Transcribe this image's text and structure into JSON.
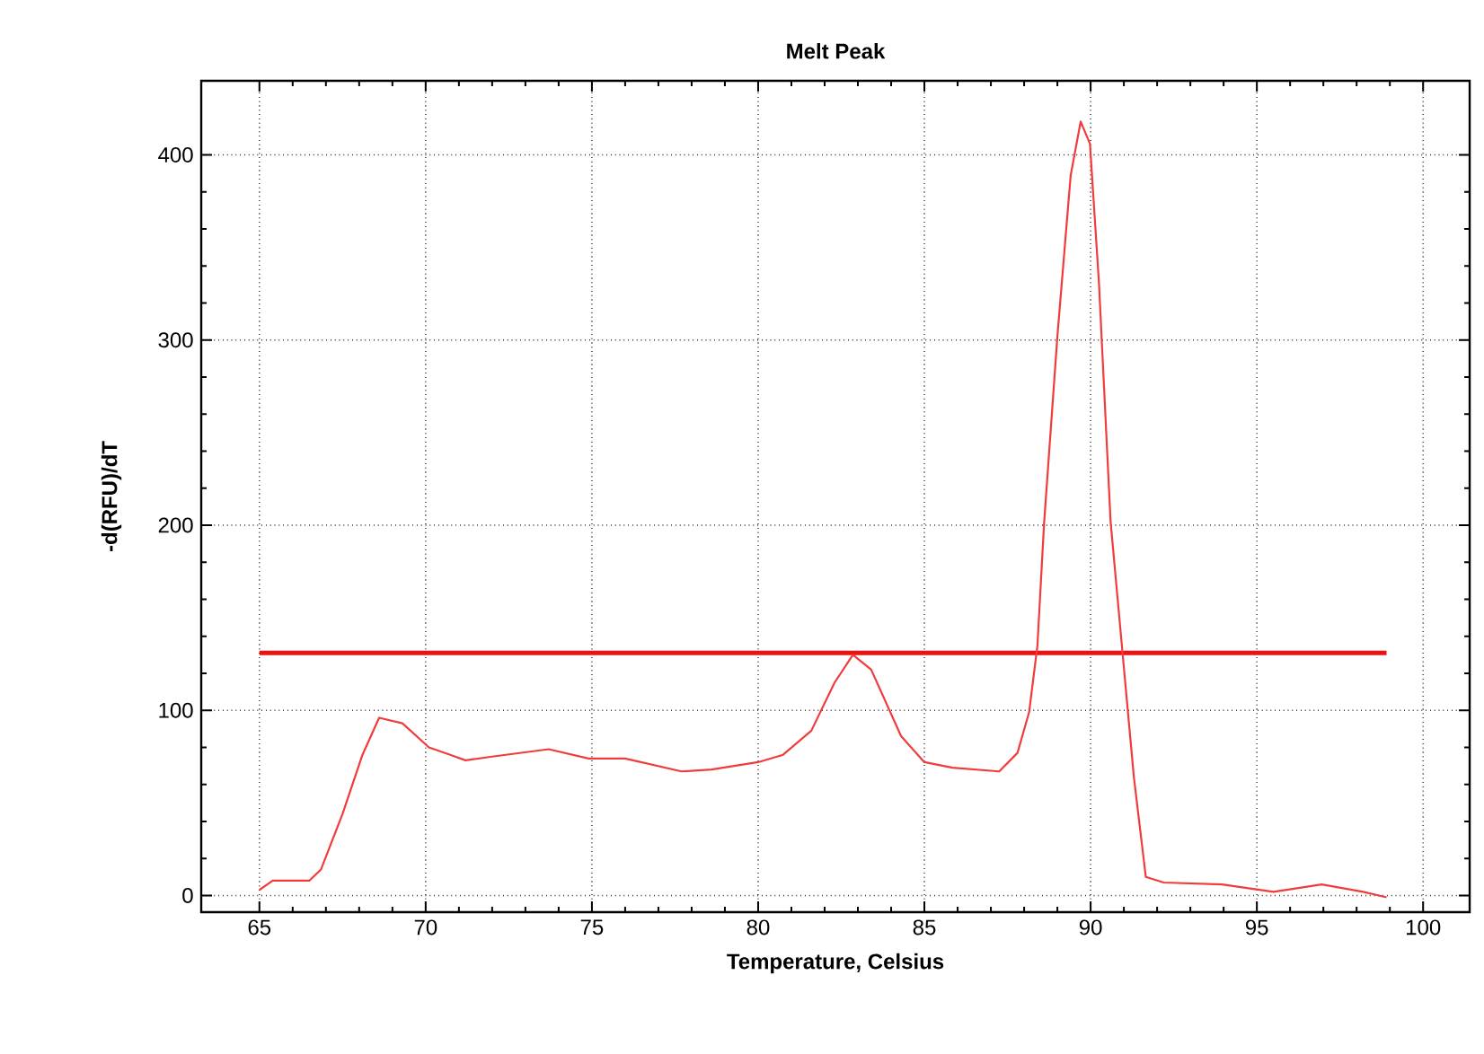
{
  "chart_data": {
    "type": "line",
    "title": "Melt Peak",
    "xlabel": "Temperature, Celsius",
    "ylabel": "-d(RFU)/dT",
    "xlim": [
      63.25,
      101.4
    ],
    "ylim": [
      -9,
      440
    ],
    "xticks": [
      65,
      70,
      75,
      80,
      85,
      90,
      95,
      100
    ],
    "yticks": [
      0,
      100,
      200,
      300,
      400
    ],
    "grid": true,
    "marker": "none",
    "line_style": "solid",
    "ref_lines": [
      {
        "axis": "y",
        "value": 131,
        "color": "#ee1111",
        "line_style": "solid"
      }
    ],
    "series": [
      {
        "color": "#f03c3c",
        "x": [
          65,
          65.4,
          66.5,
          66.85,
          67.5,
          68.1,
          68.6,
          69.3,
          70.1,
          71.2,
          72,
          73.7,
          74.9,
          76,
          77.7,
          78.6,
          80,
          80.75,
          81.6,
          82.3,
          82.85,
          83.4,
          84.3,
          85,
          85.85,
          87.25,
          87.8,
          88.15,
          88.4,
          88.6,
          89.0,
          89.4,
          89.7,
          89.98,
          90.25,
          90.6,
          90.96,
          91.3,
          91.66,
          92.2,
          93.95,
          95.5,
          96.95,
          98.2,
          98.9
        ],
        "values": [
          3,
          8,
          8,
          14,
          44,
          76,
          96,
          93,
          80,
          73,
          75,
          79,
          74,
          74,
          67,
          68,
          72,
          76,
          89,
          115,
          130,
          122,
          86,
          72,
          69,
          67,
          77,
          99,
          135,
          201,
          302,
          389,
          418,
          406,
          331,
          202,
          131,
          64,
          10,
          7,
          6,
          2,
          6,
          2,
          -1
        ]
      }
    ]
  }
}
